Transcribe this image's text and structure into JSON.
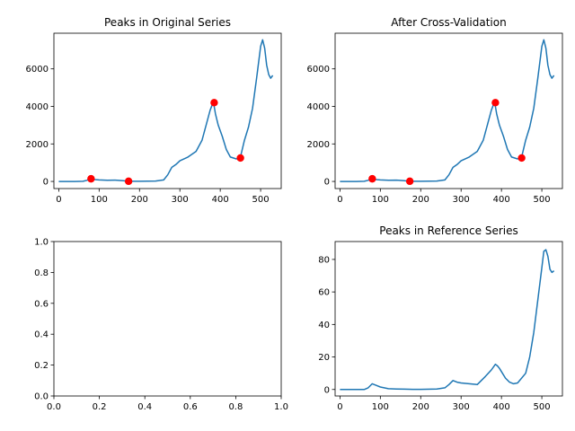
{
  "chart_data": [
    {
      "type": "line",
      "title": "Peaks in Original Series",
      "xlim": [
        -12,
        551
      ],
      "ylim": [
        -380,
        7900
      ],
      "xticks": [
        0,
        100,
        200,
        300,
        400,
        500
      ],
      "yticks": [
        0,
        2000,
        4000,
        6000
      ],
      "series": [
        {
          "x": [
            0,
            40,
            60,
            70,
            80,
            90,
            100,
            120,
            140,
            160,
            170,
            200,
            240,
            260,
            270,
            280,
            290,
            300,
            320,
            340,
            355,
            365,
            375,
            383,
            388,
            395,
            405,
            415,
            425,
            440,
            450,
            460,
            470,
            480,
            490,
            500,
            505,
            510,
            515,
            520,
            525,
            530
          ],
          "y": [
            0,
            0,
            10,
            60,
            140,
            100,
            80,
            60,
            70,
            40,
            10,
            10,
            20,
            80,
            350,
            750,
            900,
            1100,
            1300,
            1600,
            2200,
            3000,
            3800,
            4250,
            3600,
            3000,
            2400,
            1700,
            1300,
            1200,
            1300,
            2200,
            2900,
            3900,
            5500,
            7200,
            7550,
            7100,
            6200,
            5700,
            5500,
            5650
          ]
        }
      ],
      "peaks": [
        {
          "x": 80,
          "y": 140
        },
        {
          "x": 173,
          "y": 10
        },
        {
          "x": 385,
          "y": 4200
        },
        {
          "x": 450,
          "y": 1250
        }
      ]
    },
    {
      "type": "line",
      "title": "After Cross-Validation",
      "xlim": [
        -12,
        551
      ],
      "ylim": [
        -380,
        7900
      ],
      "xticks": [
        0,
        100,
        200,
        300,
        400,
        500
      ],
      "yticks": [
        0,
        2000,
        4000,
        6000
      ],
      "series": [
        {
          "x": [
            0,
            40,
            60,
            70,
            80,
            90,
            100,
            120,
            140,
            160,
            170,
            200,
            240,
            260,
            270,
            280,
            290,
            300,
            320,
            340,
            355,
            365,
            375,
            383,
            388,
            395,
            405,
            415,
            425,
            440,
            450,
            460,
            470,
            480,
            490,
            500,
            505,
            510,
            515,
            520,
            525,
            530
          ],
          "y": [
            0,
            0,
            10,
            60,
            140,
            100,
            80,
            60,
            70,
            40,
            10,
            10,
            20,
            80,
            350,
            750,
            900,
            1100,
            1300,
            1600,
            2200,
            3000,
            3800,
            4250,
            3600,
            3000,
            2400,
            1700,
            1300,
            1200,
            1300,
            2200,
            2900,
            3900,
            5500,
            7200,
            7550,
            7100,
            6200,
            5700,
            5500,
            5650
          ]
        }
      ],
      "peaks": [
        {
          "x": 80,
          "y": 140
        },
        {
          "x": 173,
          "y": 10
        },
        {
          "x": 385,
          "y": 4200
        },
        {
          "x": 450,
          "y": 1250
        }
      ]
    },
    {
      "type": "line",
      "title": "",
      "xlim": [
        0,
        1
      ],
      "ylim": [
        0,
        1
      ],
      "xticks": [
        0.0,
        0.2,
        0.4,
        0.6,
        0.8,
        1.0
      ],
      "yticks": [
        0.0,
        0.2,
        0.4,
        0.6,
        0.8,
        1.0
      ],
      "tick_decimals": 1,
      "series": [],
      "peaks": []
    },
    {
      "type": "line",
      "title": "Peaks in Reference Series",
      "xlim": [
        -12,
        551
      ],
      "ylim": [
        -4,
        91
      ],
      "xticks": [
        0,
        100,
        200,
        300,
        400,
        500
      ],
      "yticks": [
        0,
        20,
        40,
        60,
        80
      ],
      "series": [
        {
          "x": [
            0,
            60,
            70,
            80,
            90,
            100,
            120,
            140,
            160,
            180,
            200,
            240,
            260,
            270,
            280,
            290,
            300,
            320,
            340,
            360,
            375,
            385,
            390,
            395,
            400,
            410,
            420,
            430,
            440,
            460,
            470,
            480,
            490,
            500,
            505,
            510,
            515,
            520,
            525,
            530
          ],
          "y": [
            0,
            0,
            1,
            3.5,
            2.5,
            1.5,
            0.5,
            0.3,
            0.2,
            0.1,
            0.1,
            0.3,
            1,
            3,
            5.5,
            4.5,
            4,
            3.5,
            3,
            8,
            12,
            15.5,
            14.5,
            13,
            11,
            7,
            4.5,
            3.5,
            4,
            10,
            20,
            35,
            55,
            75,
            85,
            86,
            82,
            74,
            72,
            73
          ]
        }
      ],
      "peaks": []
    }
  ]
}
